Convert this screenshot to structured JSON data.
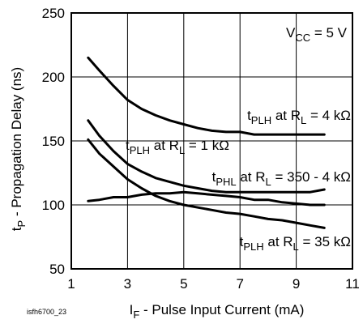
{
  "chart_data": {
    "type": "line",
    "xlabel": {
      "main": "I",
      "sub": "F",
      "rest": " - Pulse Input Current (mA)"
    },
    "ylabel": {
      "main": "t",
      "sub": "P",
      "rest": " - Propagation Delay (ns)"
    },
    "xlim": [
      1,
      11
    ],
    "ylim": [
      50,
      250
    ],
    "xticks": [
      "1",
      "3",
      "5",
      "7",
      "9",
      "11"
    ],
    "yticks": [
      "50",
      "100",
      "150",
      "200",
      "250"
    ],
    "grid": true,
    "condition": {
      "main": "V",
      "sub": "CC",
      "rest": " = 5 V"
    },
    "figure_id": "isfh6700_23",
    "series": [
      {
        "label": {
          "main": "t",
          "sub": "PLH",
          "mid": " at R",
          "sub2": "L",
          "rest": " = 4 kΩ"
        },
        "x": [
          1.6,
          2.0,
          2.5,
          3.0,
          3.5,
          4.0,
          4.5,
          5.0,
          5.5,
          6.0,
          6.5,
          7.0,
          7.5,
          8.0,
          8.5,
          9.0,
          9.5,
          10.0
        ],
        "y": [
          215,
          205,
          193,
          182,
          175,
          170,
          166,
          163,
          160,
          158,
          157,
          157,
          155,
          155,
          155,
          155,
          155,
          155
        ]
      },
      {
        "label": {
          "main": "t",
          "sub": "PLH",
          "mid": " at R",
          "sub2": "L",
          "rest": " = 1 kΩ"
        },
        "x": [
          1.6,
          2.0,
          2.5,
          3.0,
          3.5,
          4.0,
          4.5,
          5.0,
          5.5,
          6.0,
          6.5,
          7.0,
          7.5,
          8.0,
          8.5,
          9.0,
          9.5,
          10.0
        ],
        "y": [
          166,
          154,
          142,
          132,
          126,
          121,
          118,
          115,
          113,
          111,
          110,
          110,
          110,
          110,
          110,
          110,
          110,
          112
        ]
      },
      {
        "label": {
          "main": "t",
          "sub": "PHL",
          "mid": " at R",
          "sub2": "L",
          "rest": " = 350 - 4 kΩ"
        },
        "x": [
          1.6,
          2.0,
          2.5,
          3.0,
          3.5,
          4.0,
          4.5,
          5.0,
          5.5,
          6.0,
          6.5,
          7.0,
          7.5,
          8.0,
          8.5,
          9.0,
          9.5,
          10.0
        ],
        "y": [
          103,
          104,
          106,
          106,
          108,
          109,
          109,
          110,
          109,
          108,
          107,
          106,
          104,
          104,
          102,
          101,
          100,
          100
        ]
      },
      {
        "label": {
          "main": "t",
          "sub": "PLH",
          "mid": " at R",
          "sub2": "L",
          "rest": " = 35 kΩ"
        },
        "x": [
          1.6,
          2.0,
          2.5,
          3.0,
          3.5,
          4.0,
          4.5,
          5.0,
          5.5,
          6.0,
          6.5,
          7.0,
          7.5,
          8.0,
          8.5,
          9.0,
          9.5,
          10.0
        ],
        "y": [
          151,
          140,
          130,
          120,
          113,
          107,
          103,
          100,
          98,
          96,
          94,
          93,
          91,
          89,
          88,
          86,
          84,
          82
        ]
      }
    ]
  }
}
